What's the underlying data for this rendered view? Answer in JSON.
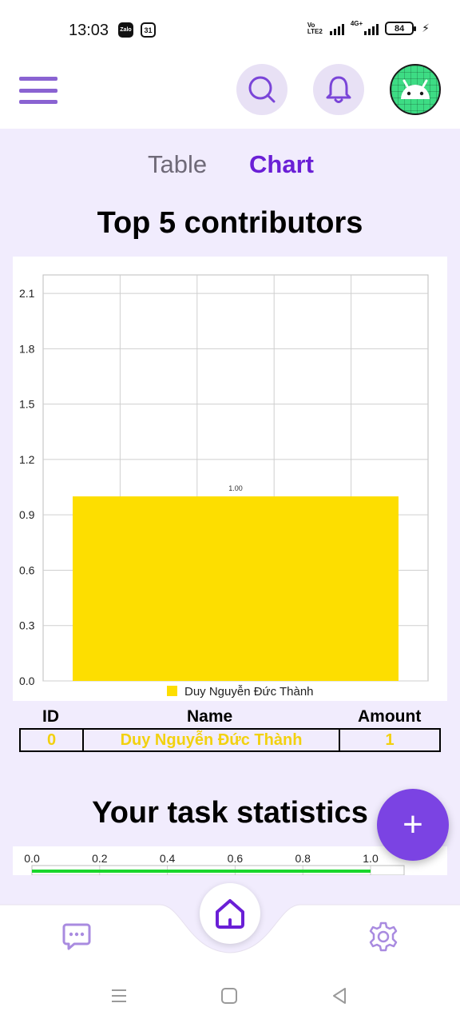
{
  "status_bar": {
    "time": "13:03",
    "zalo_label": "Zalo",
    "calendar_day": "31",
    "volte_label": "Vo LTE2",
    "network": "4G+",
    "battery": "84"
  },
  "app_bar": {
    "menu_icon": "menu-icon",
    "search_icon": "search-icon",
    "notification_icon": "bell-icon",
    "avatar_icon": "android-icon"
  },
  "tabs": [
    {
      "label": "Table",
      "active": false
    },
    {
      "label": "Chart",
      "active": true
    }
  ],
  "contributors": {
    "title": "Top 5 contributors",
    "table_headers": {
      "id": "ID",
      "name": "Name",
      "amount": "Amount"
    },
    "rows": [
      {
        "id": "0",
        "name": "Duy Nguyễn Đức Thành",
        "amount": "1"
      }
    ]
  },
  "task_stats": {
    "title": "Your task statistics",
    "progress_fraction": 1.0,
    "axis_ticks": [
      "0.0",
      "0.2",
      "0.4",
      "0.6",
      "0.8",
      "1.0"
    ],
    "bar_color": "#19d62c"
  },
  "fab": {
    "label": "+"
  },
  "bottom_nav": {
    "items": [
      "chat-icon",
      "home-icon",
      "settings-icon"
    ]
  },
  "colors": {
    "accent": "#6a1fd6",
    "bar": "#fdde00",
    "fab": "#7b43e3"
  },
  "chart_data": {
    "type": "bar",
    "categories": [
      ""
    ],
    "series": [
      {
        "name": "Duy Nguyễn Đức Thành",
        "values": [
          1.0
        ]
      }
    ],
    "data_labels": [
      "1.00"
    ],
    "y_ticks": [
      "0.0",
      "0.3",
      "0.6",
      "0.9",
      "1.2",
      "1.5",
      "1.8",
      "2.1"
    ],
    "ylim": [
      0,
      2.2
    ],
    "grid": true,
    "legend": "bottom",
    "bar_color": "#fdde00"
  }
}
